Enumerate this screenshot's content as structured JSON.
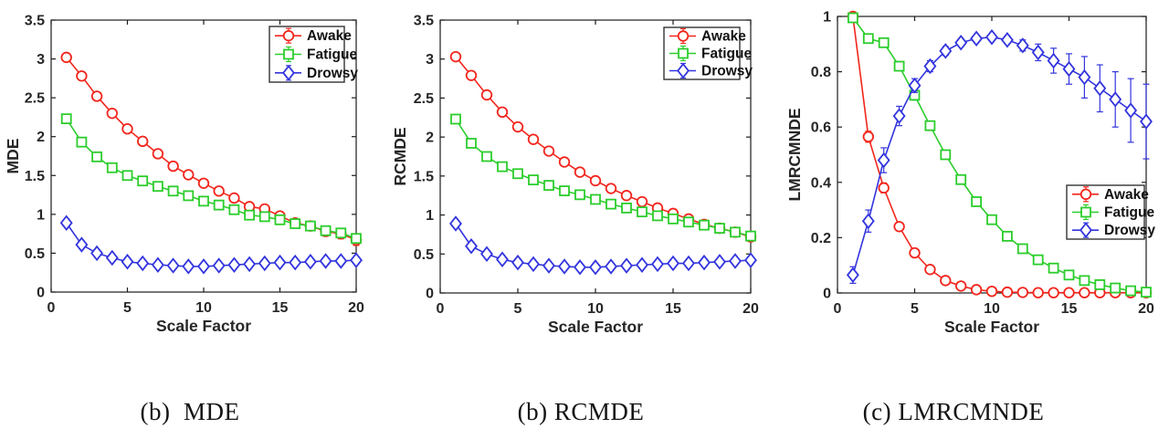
{
  "figure": {
    "background": "#ffffff",
    "captions": [
      {
        "text": "(b)  MDE"
      },
      {
        "text": "(b) RCMDE"
      },
      {
        "text": "(c) LMRCMNDE"
      }
    ]
  },
  "colors": {
    "axis": "#1c1c1c",
    "tick_label": "#262626",
    "legend_border": "#333333"
  },
  "chart_data": [
    {
      "type": "line",
      "caption": "(b)  MDE",
      "xlabel": "Scale Factor",
      "ylabel": "MDE",
      "xlim": [
        0,
        20
      ],
      "ylim": [
        0,
        3.5
      ],
      "xticks": [
        0,
        5,
        10,
        15,
        20
      ],
      "yticks": [
        0,
        0.5,
        1,
        1.5,
        2,
        2.5,
        3,
        3.5
      ],
      "grid": false,
      "legend_position": "top-right",
      "x": [
        1,
        2,
        3,
        4,
        5,
        6,
        7,
        8,
        9,
        10,
        11,
        12,
        13,
        14,
        15,
        16,
        17,
        18,
        19,
        20
      ],
      "series": [
        {
          "name": "Awake",
          "color": "#f2261d",
          "marker": "circle",
          "values": [
            3.02,
            2.78,
            2.52,
            2.3,
            2.1,
            1.94,
            1.78,
            1.62,
            1.51,
            1.4,
            1.3,
            1.21,
            1.1,
            1.07,
            0.98,
            0.89,
            0.85,
            0.78,
            0.75,
            0.67
          ],
          "errors": [
            0.03,
            0.03,
            0.03,
            0.03,
            0.03,
            0.03,
            0.03,
            0.03,
            0.03,
            0.03,
            0.035,
            0.04,
            0.04,
            0.045,
            0.05,
            0.05,
            0.055,
            0.06,
            0.065,
            0.07
          ]
        },
        {
          "name": "Fatigue",
          "color": "#2bcd2b",
          "marker": "square",
          "values": [
            2.23,
            1.93,
            1.74,
            1.6,
            1.5,
            1.43,
            1.36,
            1.3,
            1.24,
            1.17,
            1.12,
            1.06,
            0.99,
            0.97,
            0.93,
            0.88,
            0.85,
            0.79,
            0.76,
            0.69
          ],
          "errors": [
            0.025,
            0.025,
            0.025,
            0.025,
            0.025,
            0.025,
            0.025,
            0.025,
            0.025,
            0.025,
            0.03,
            0.03,
            0.03,
            0.03,
            0.035,
            0.035,
            0.04,
            0.04,
            0.045,
            0.05
          ]
        },
        {
          "name": "Drowsy",
          "color": "#3234dd",
          "marker": "diamond",
          "values": [
            0.89,
            0.61,
            0.5,
            0.44,
            0.39,
            0.37,
            0.35,
            0.34,
            0.33,
            0.33,
            0.34,
            0.35,
            0.36,
            0.37,
            0.38,
            0.38,
            0.39,
            0.4,
            0.4,
            0.41
          ],
          "errors": [
            0.045,
            0.035,
            0.03,
            0.025,
            0.025,
            0.02,
            0.02,
            0.02,
            0.02,
            0.02,
            0.02,
            0.02,
            0.02,
            0.02,
            0.02,
            0.02,
            0.02,
            0.025,
            0.025,
            0.03
          ]
        }
      ]
    },
    {
      "type": "line",
      "caption": "(b) RCMDE",
      "xlabel": "Scale Factor",
      "ylabel": "RCMDE",
      "xlim": [
        0,
        20
      ],
      "ylim": [
        0,
        3.5
      ],
      "xticks": [
        0,
        5,
        10,
        15,
        20
      ],
      "yticks": [
        0,
        0.5,
        1,
        1.5,
        2,
        2.5,
        3,
        3.5
      ],
      "grid": false,
      "legend_position": "top-right",
      "x": [
        1,
        2,
        3,
        4,
        5,
        6,
        7,
        8,
        9,
        10,
        11,
        12,
        13,
        14,
        15,
        16,
        17,
        18,
        19,
        20
      ],
      "series": [
        {
          "name": "Awake",
          "color": "#f2261d",
          "marker": "circle",
          "values": [
            3.03,
            2.79,
            2.54,
            2.32,
            2.13,
            1.97,
            1.82,
            1.68,
            1.55,
            1.44,
            1.34,
            1.25,
            1.17,
            1.09,
            1.02,
            0.95,
            0.88,
            0.83,
            0.78,
            0.72
          ],
          "errors": [
            0.03,
            0.03,
            0.03,
            0.03,
            0.03,
            0.03,
            0.03,
            0.03,
            0.03,
            0.03,
            0.03,
            0.035,
            0.035,
            0.04,
            0.04,
            0.045,
            0.05,
            0.05,
            0.055,
            0.06
          ]
        },
        {
          "name": "Fatigue",
          "color": "#2bcd2b",
          "marker": "square",
          "values": [
            2.23,
            1.92,
            1.75,
            1.62,
            1.53,
            1.45,
            1.38,
            1.31,
            1.26,
            1.2,
            1.14,
            1.09,
            1.04,
            0.99,
            0.95,
            0.91,
            0.87,
            0.83,
            0.78,
            0.73
          ],
          "errors": [
            0.025,
            0.025,
            0.025,
            0.025,
            0.025,
            0.025,
            0.025,
            0.025,
            0.025,
            0.025,
            0.025,
            0.03,
            0.03,
            0.03,
            0.03,
            0.035,
            0.035,
            0.04,
            0.04,
            0.045
          ]
        },
        {
          "name": "Drowsy",
          "color": "#3234dd",
          "marker": "diamond",
          "values": [
            0.89,
            0.6,
            0.5,
            0.43,
            0.39,
            0.37,
            0.35,
            0.34,
            0.33,
            0.33,
            0.34,
            0.35,
            0.36,
            0.37,
            0.38,
            0.38,
            0.39,
            0.4,
            0.41,
            0.42
          ],
          "errors": [
            0.045,
            0.035,
            0.03,
            0.025,
            0.025,
            0.02,
            0.02,
            0.02,
            0.02,
            0.02,
            0.02,
            0.02,
            0.02,
            0.02,
            0.02,
            0.02,
            0.02,
            0.025,
            0.025,
            0.03
          ]
        }
      ]
    },
    {
      "type": "line",
      "caption": "(c) LMRCMNDE",
      "xlabel": "Scale Factor",
      "ylabel": "LMRCMNDE",
      "xlim": [
        0,
        20
      ],
      "ylim": [
        0,
        1
      ],
      "xticks": [
        0,
        5,
        10,
        15,
        20
      ],
      "yticks": [
        0,
        0.2,
        0.4,
        0.6,
        0.8,
        1
      ],
      "grid": false,
      "legend_position": "mid-right",
      "x": [
        1,
        2,
        3,
        4,
        5,
        6,
        7,
        8,
        9,
        10,
        11,
        12,
        13,
        14,
        15,
        16,
        17,
        18,
        19,
        20
      ],
      "series": [
        {
          "name": "Awake",
          "color": "#f2261d",
          "marker": "circle",
          "values": [
            1.0,
            0.565,
            0.38,
            0.24,
            0.145,
            0.085,
            0.045,
            0.025,
            0.012,
            0.006,
            0.003,
            0.002,
            0.001,
            0.001,
            0.001,
            0.001,
            0.001,
            0.001,
            0.001,
            0.001
          ],
          "errors": [
            0.0,
            0.02,
            0.018,
            0.015,
            0.012,
            0.01,
            0.008,
            0.006,
            0.004,
            0.003,
            0.002,
            0.002,
            0.001,
            0.001,
            0.001,
            0.001,
            0.001,
            0.001,
            0.001,
            0.001
          ]
        },
        {
          "name": "Fatigue",
          "color": "#2bcd2b",
          "marker": "square",
          "values": [
            0.995,
            0.92,
            0.905,
            0.82,
            0.715,
            0.605,
            0.5,
            0.41,
            0.33,
            0.265,
            0.205,
            0.16,
            0.12,
            0.09,
            0.065,
            0.045,
            0.03,
            0.018,
            0.008,
            0.003
          ],
          "errors": [
            0.005,
            0.012,
            0.012,
            0.015,
            0.018,
            0.015,
            0.013,
            0.012,
            0.012,
            0.011,
            0.01,
            0.01,
            0.009,
            0.008,
            0.007,
            0.006,
            0.005,
            0.004,
            0.003,
            0.002
          ]
        },
        {
          "name": "Drowsy",
          "color": "#3234dd",
          "marker": "diamond",
          "values": [
            0.065,
            0.26,
            0.48,
            0.64,
            0.75,
            0.82,
            0.875,
            0.905,
            0.92,
            0.925,
            0.915,
            0.895,
            0.87,
            0.84,
            0.81,
            0.78,
            0.74,
            0.7,
            0.66,
            0.62
          ],
          "errors": [
            0.03,
            0.04,
            0.045,
            0.035,
            0.025,
            0.02,
            0.016,
            0.013,
            0.011,
            0.01,
            0.014,
            0.02,
            0.03,
            0.045,
            0.055,
            0.075,
            0.085,
            0.1,
            0.115,
            0.135
          ]
        }
      ]
    }
  ]
}
